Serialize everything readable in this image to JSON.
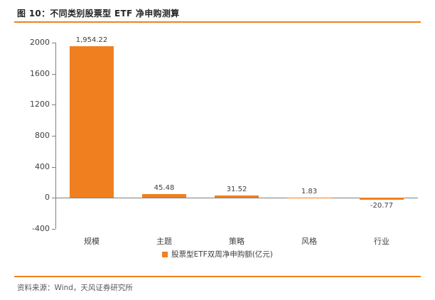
{
  "header": {
    "title": "图 10：不同类别股票型 ETF 净申购测算"
  },
  "footer": {
    "source": "资料来源：Wind，天风证券研究所"
  },
  "colors": {
    "accent_orange": "#F0801F",
    "bar": "#F0801F",
    "axis_line": "#808080",
    "title_text": "#262626",
    "axis_text": "#404040",
    "source_text": "#595959"
  },
  "chart_data": {
    "type": "bar",
    "title": "图 10：不同类别股票型 ETF 净申购测算",
    "categories": [
      "规模",
      "主题",
      "策略",
      "风格",
      "行业"
    ],
    "values": [
      1954.22,
      45.48,
      31.52,
      1.83,
      -20.77
    ],
    "value_labels": [
      "1,954.22",
      "45.48",
      "31.52",
      "1.83",
      "-20.77"
    ],
    "series_name": "股票型ETF双周净申购额(亿元)",
    "xlabel": "",
    "ylabel": "",
    "ylim": [
      -400,
      2000
    ],
    "yticks": [
      2000,
      1600,
      1200,
      800,
      400,
      0,
      -400
    ],
    "grid": false,
    "legend_position": "bottom"
  }
}
